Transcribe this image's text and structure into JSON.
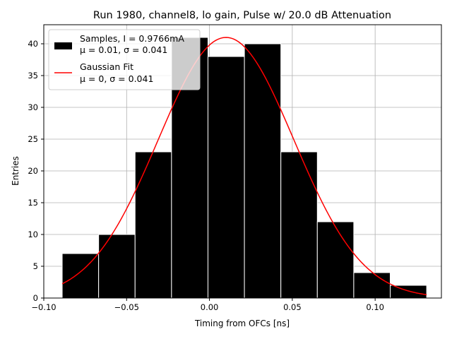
{
  "chart_data": {
    "type": "bar",
    "title": "Run 1980, channel8, lo gain, Pulse w/ 20.0 dB Attenuation",
    "xlabel": "Timing from OFCs [ns]",
    "ylabel": "Entries",
    "xlim": [
      -0.1,
      0.14
    ],
    "ylim": [
      0,
      43
    ],
    "grid": true,
    "x_ticks": [
      -0.1,
      -0.05,
      0.0,
      0.05,
      0.1
    ],
    "x_tick_labels": [
      "−0.10",
      "−0.05",
      "0.00",
      "0.05",
      "0.10"
    ],
    "y_ticks": [
      0,
      5,
      10,
      15,
      20,
      25,
      30,
      35,
      40
    ],
    "y_tick_labels": [
      "0",
      "5",
      "10",
      "15",
      "20",
      "25",
      "30",
      "35",
      "40"
    ],
    "bin_edges": [
      -0.0889,
      -0.0669,
      -0.0449,
      -0.0229,
      -0.0009,
      0.0211,
      0.0431,
      0.0651,
      0.0871,
      0.1091,
      0.1311
    ],
    "values": [
      7,
      10,
      23,
      41,
      38,
      40,
      23,
      12,
      4,
      2
    ],
    "series": [
      {
        "name": "Samples",
        "type": "histogram",
        "color": "#000000",
        "edgecolor": "#ffffff"
      },
      {
        "name": "Gaussian Fit",
        "type": "line",
        "color": "#ff0000",
        "amplitude": 41.0,
        "mean": 0.01,
        "sigma": 0.041,
        "x_range": [
          -0.0889,
          0.1311
        ]
      }
    ],
    "legend": {
      "position": "top-left",
      "entries": [
        {
          "line1": "Samples, I = 0.9766mA",
          "line2": "μ = 0.01, σ = 0.041",
          "marker": "box",
          "color": "#000000"
        },
        {
          "line1": "Gaussian Fit",
          "line2": "μ = 0, σ = 0.041",
          "marker": "line",
          "color": "#ff0000"
        }
      ]
    }
  }
}
